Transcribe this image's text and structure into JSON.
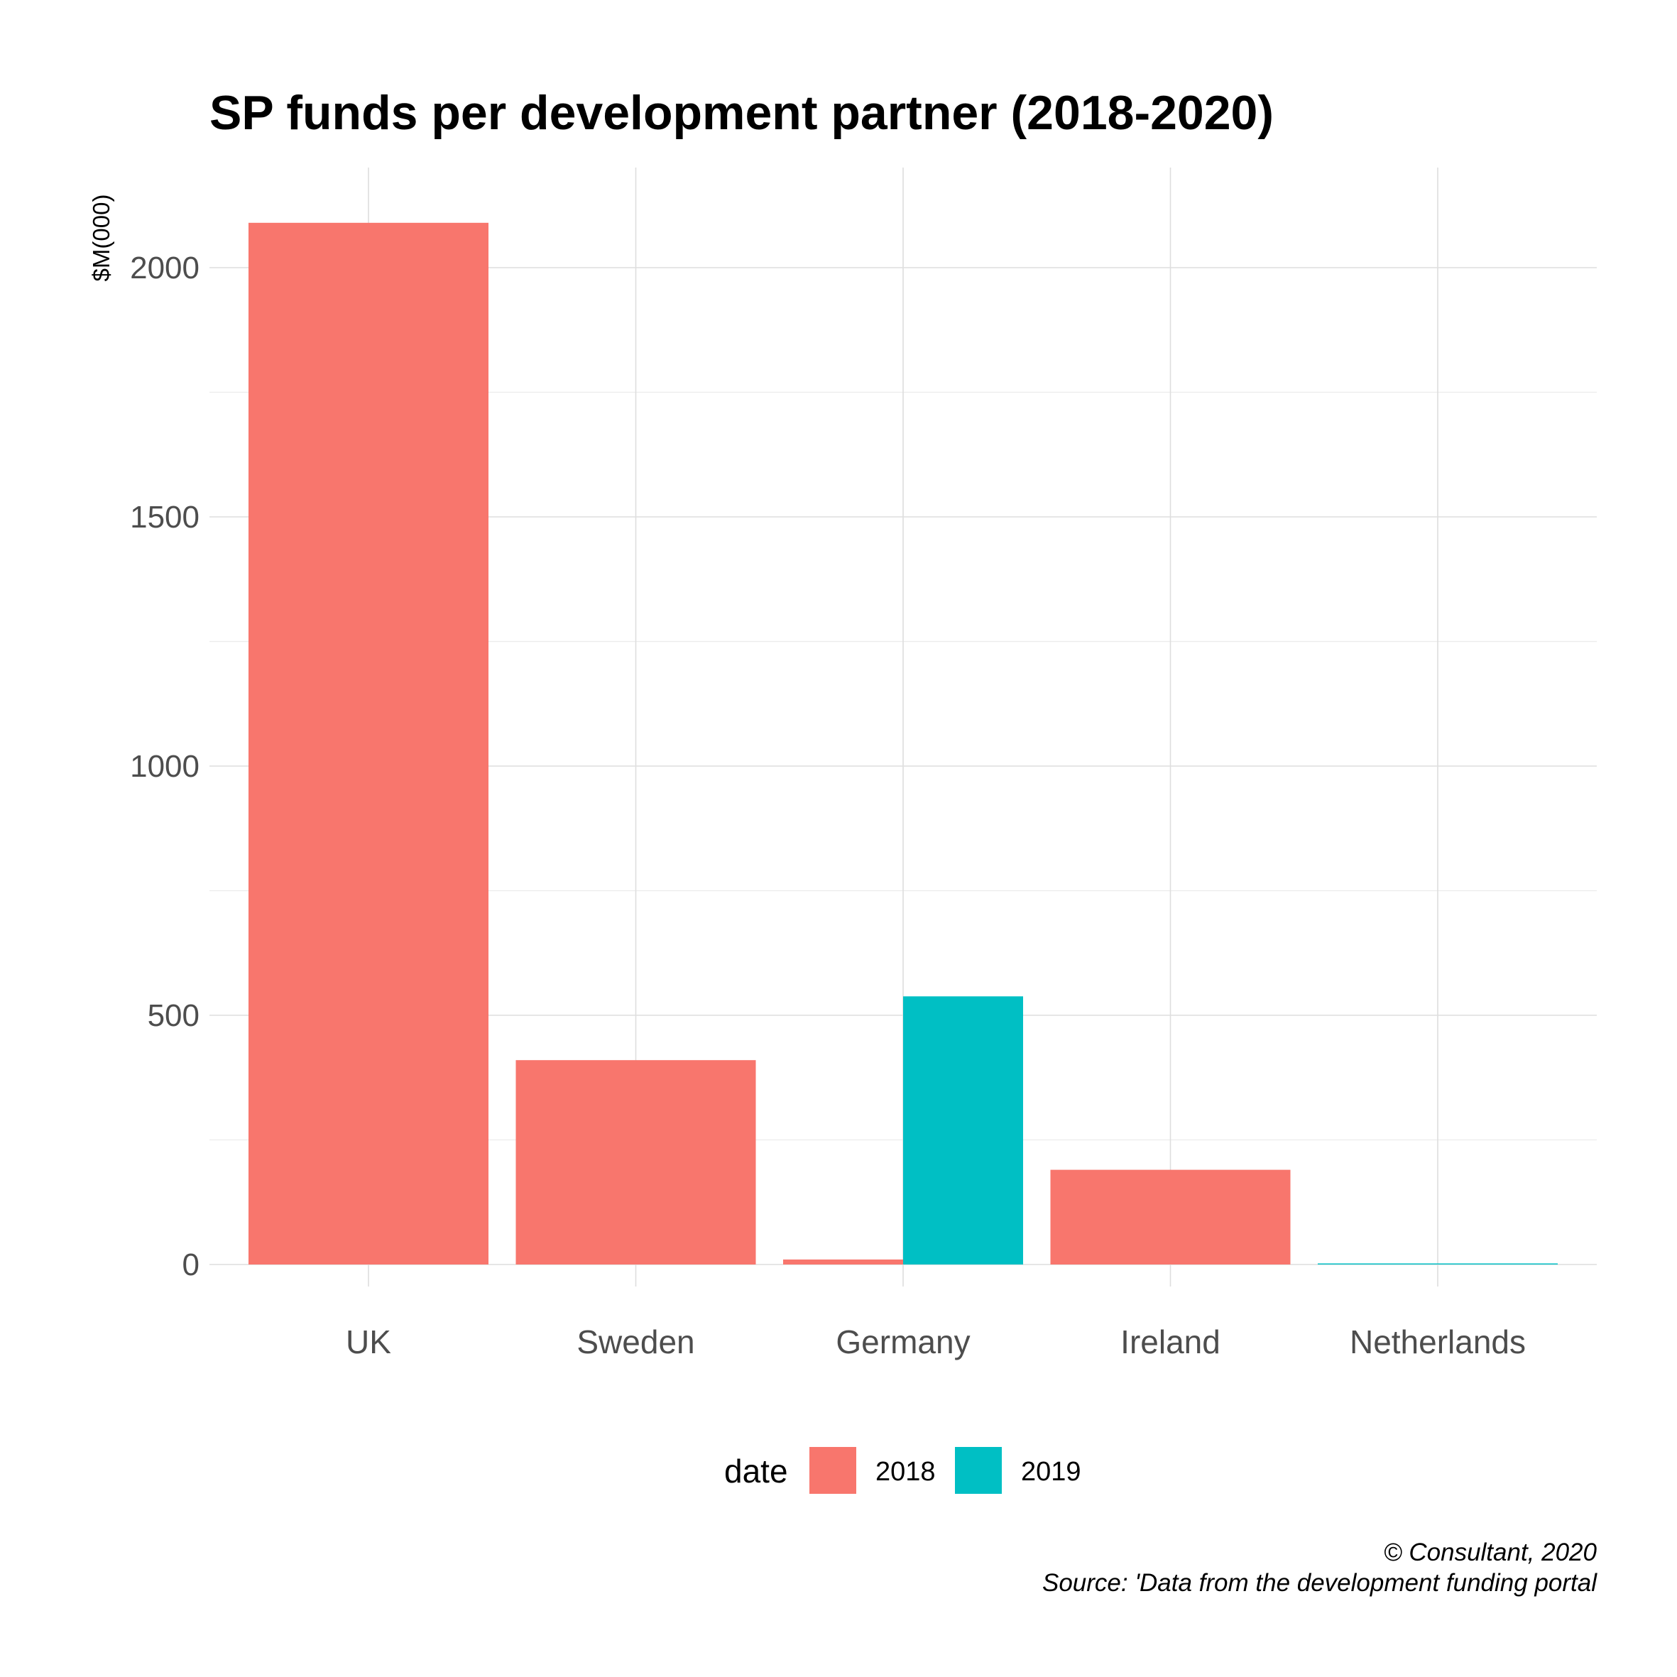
{
  "chart_data": {
    "type": "bar",
    "title": "SP funds per development partner (2018-2020)",
    "xlabel": "",
    "ylabel": "$M(000)",
    "categories": [
      "UK",
      "Sweden",
      "Germany",
      "Ireland",
      "Netherlands"
    ],
    "series": [
      {
        "name": "2018",
        "color": "#F8766D",
        "values": [
          2090,
          410,
          10,
          190,
          null
        ]
      },
      {
        "name": "2019",
        "color": "#00BFC4",
        "values": [
          null,
          null,
          538,
          null,
          2
        ]
      }
    ],
    "ylim": [
      -70,
      2200
    ],
    "yticks": [
      0,
      500,
      1000,
      1500,
      2000
    ],
    "grid": true,
    "legend": {
      "title": "date",
      "position": "bottom",
      "entries": [
        "2018",
        "2019"
      ]
    },
    "caption": [
      "© Consultant, 2020",
      "Source: 'Data from the development funding portal"
    ]
  }
}
